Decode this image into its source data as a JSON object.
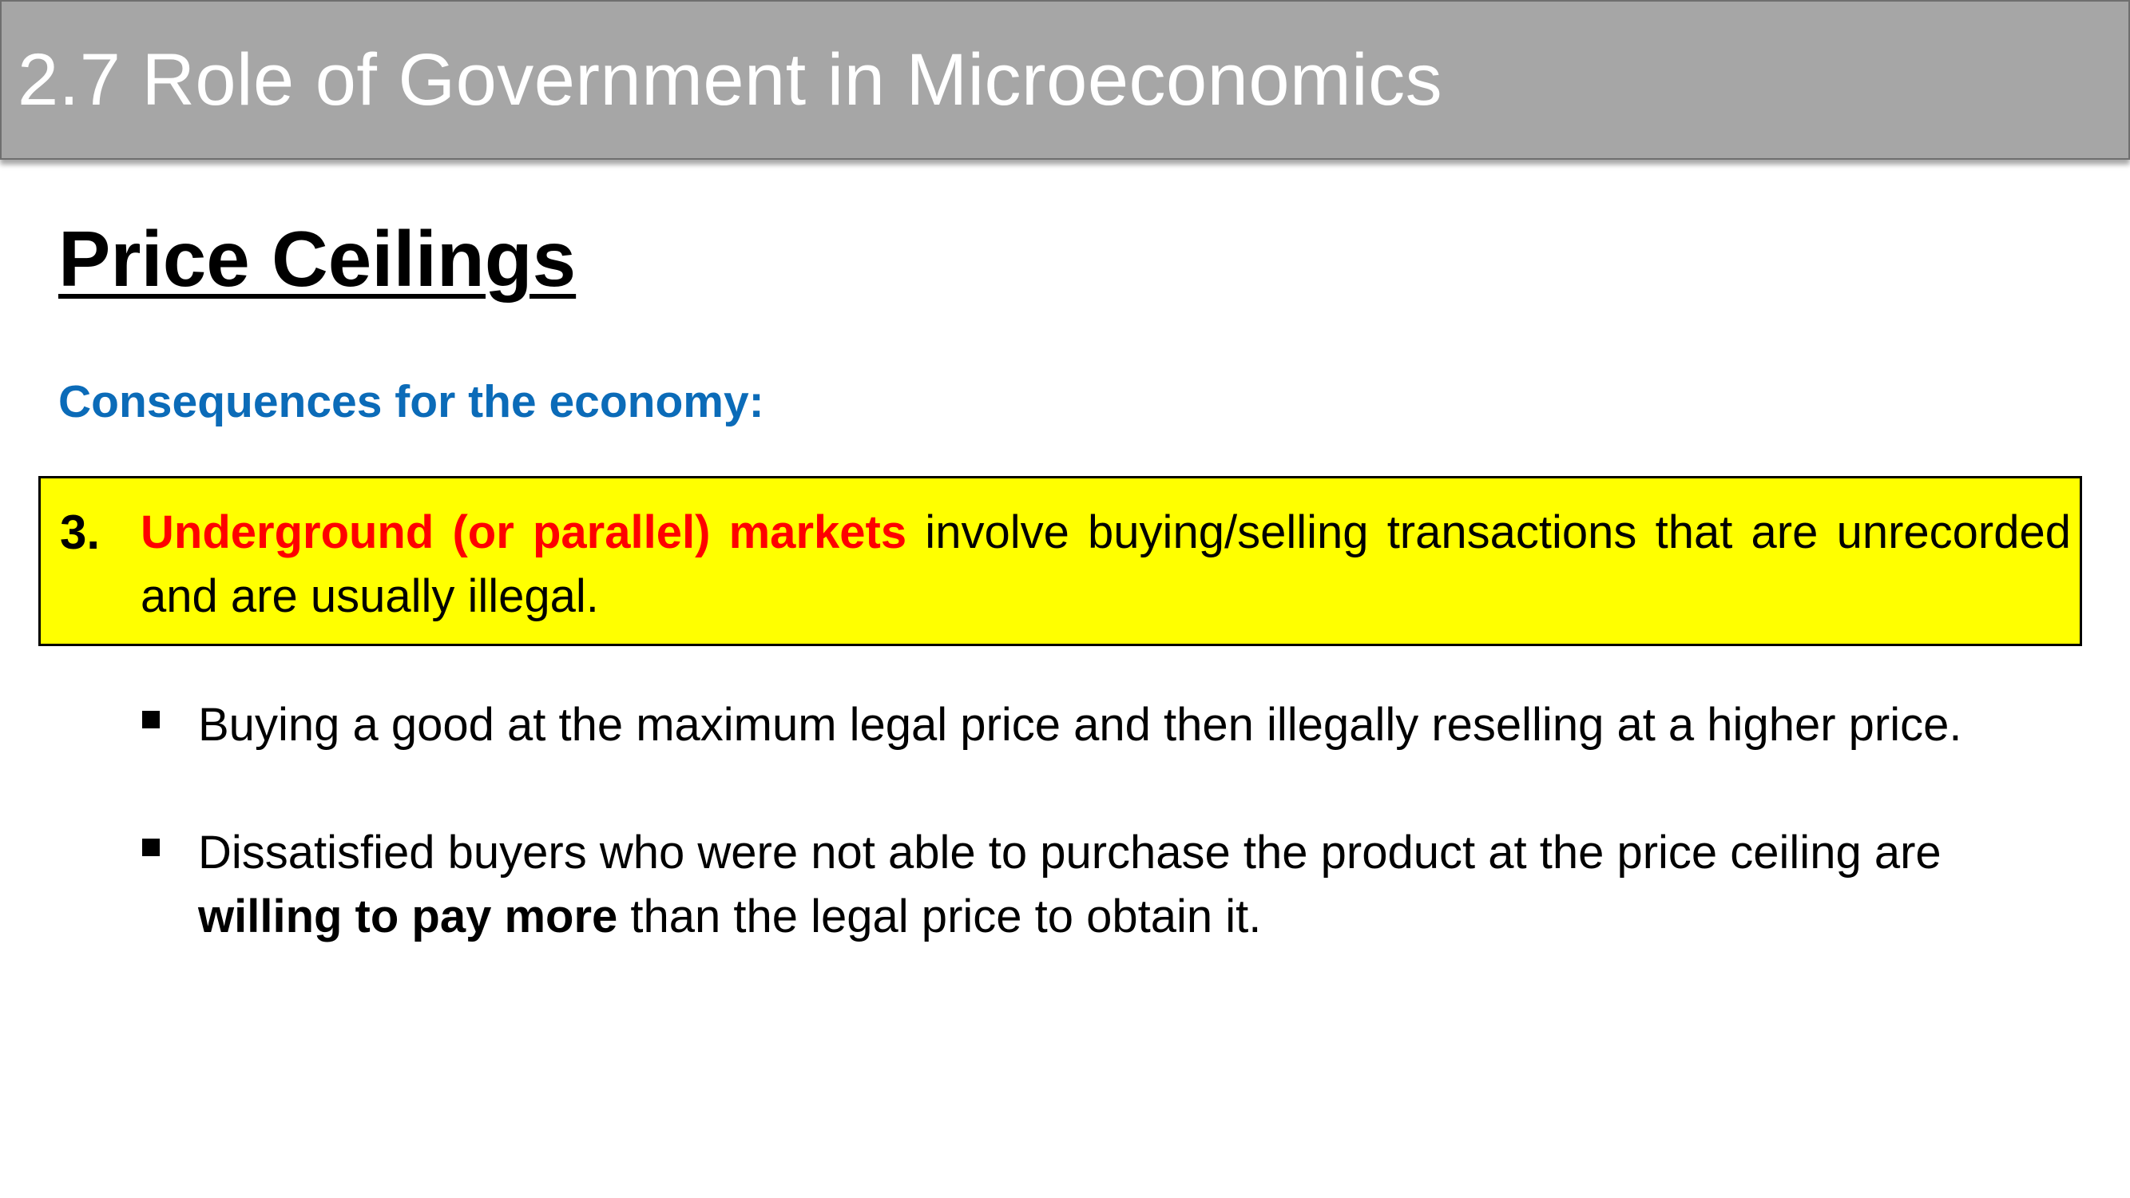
{
  "slide": {
    "title": "2.7 Role of Government in Microeconomics",
    "heading": "Price Ceilings",
    "subheading": "Consequences for the economy:",
    "colors": {
      "title_bar": "#a6a6a6",
      "subheading": "#0b6bb8",
      "highlight_box": "#ffff00",
      "key_term": "#ff0000"
    }
  },
  "point": {
    "number": "3.",
    "key_term": "Underground (or parallel) markets",
    "text": " involve buying/selling transactions that are unrecorded and are usually illegal."
  },
  "bullets": [
    {
      "text": "Buying a good at the maximum legal price and then illegally reselling at a higher price."
    },
    {
      "text_before": "Dissatisfied buyers who were not able to purchase the product at the price ceiling are ",
      "bold": "willing to pay more",
      "text_after": " than the legal price to obtain it."
    }
  ]
}
